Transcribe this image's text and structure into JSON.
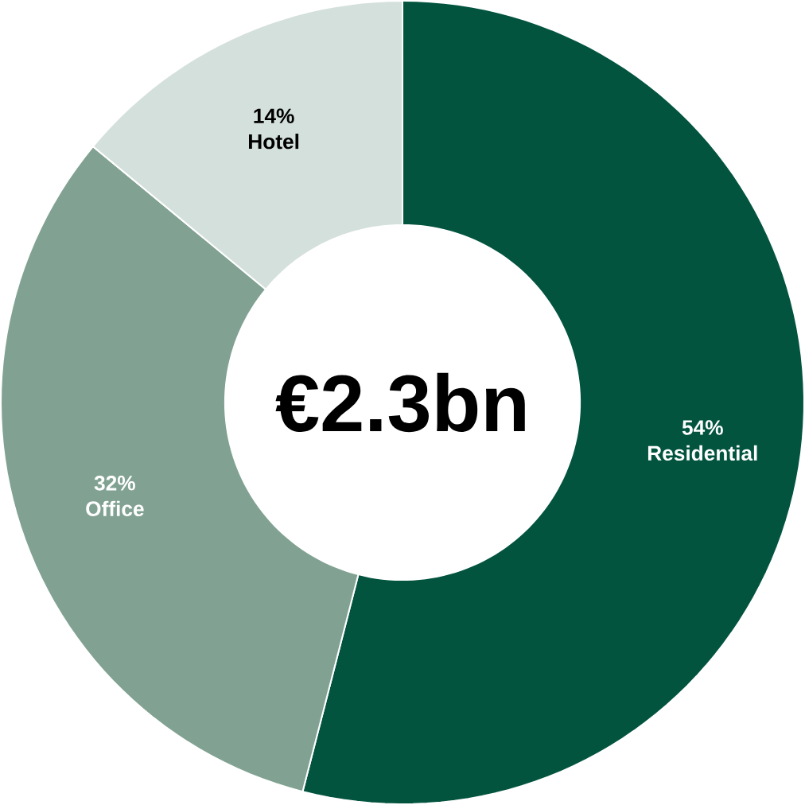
{
  "chart_data": {
    "type": "donut",
    "categories": [
      "Residential",
      "Office",
      "Hotel"
    ],
    "values": [
      54,
      32,
      14
    ],
    "value_labels": [
      "54%",
      "32%",
      "14%"
    ],
    "colors": [
      "#03543f",
      "#81a292",
      "#d4e0dc"
    ],
    "annotations": [
      "€2.3bn"
    ]
  }
}
